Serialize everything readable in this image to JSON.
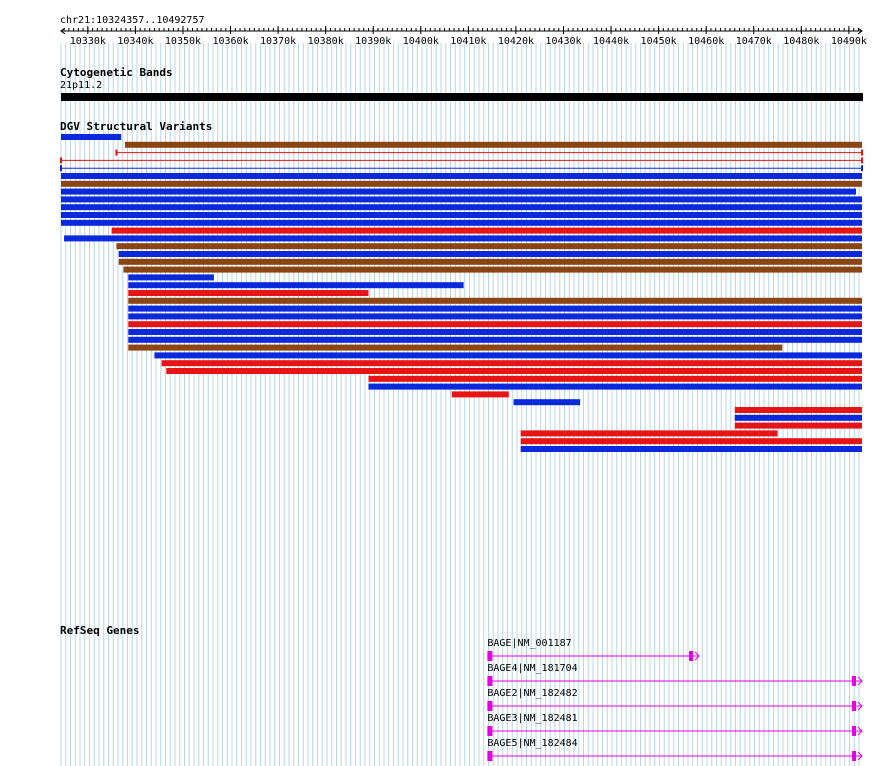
{
  "region": "chr21:10324357..10492757",
  "ruler": {
    "ticks": [
      {
        "pos": 10330000,
        "label": "10330k"
      },
      {
        "pos": 10340000,
        "label": "10340k"
      },
      {
        "pos": 10350000,
        "label": "10350k"
      },
      {
        "pos": 10360000,
        "label": "10360k"
      },
      {
        "pos": 10370000,
        "label": "10370k"
      },
      {
        "pos": 10380000,
        "label": "10380k"
      },
      {
        "pos": 10390000,
        "label": "10390k"
      },
      {
        "pos": 10400000,
        "label": "10400k"
      },
      {
        "pos": 10410000,
        "label": "10410k"
      },
      {
        "pos": 10420000,
        "label": "10420k"
      },
      {
        "pos": 10430000,
        "label": "10430k"
      },
      {
        "pos": 10440000,
        "label": "10440k"
      },
      {
        "pos": 10450000,
        "label": "10450k"
      },
      {
        "pos": 10460000,
        "label": "10460k"
      },
      {
        "pos": 10470000,
        "label": "10470k"
      },
      {
        "pos": 10480000,
        "label": "10480k"
      },
      {
        "pos": 10490000,
        "label": "10490k"
      }
    ]
  },
  "cytoband": {
    "title": "Cytogenetic Bands",
    "band": "21p11.2",
    "color": "#000000"
  },
  "dgv": {
    "title": "DGV Structural Variants",
    "colors": {
      "gain": "#0a28dc",
      "loss": "#e61414",
      "both": "#8b4513"
    },
    "features": [
      {
        "type": "gain",
        "start": 10324357,
        "end": 10337000
      },
      {
        "type": "both",
        "start": 10337800,
        "end": 10492757
      },
      {
        "type": "loss",
        "start": 10336000,
        "end": 10492757,
        "thin": true
      },
      {
        "type": "loss",
        "start": 10324357,
        "end": 10492757,
        "thin": true
      },
      {
        "type": "gain",
        "start": 10324357,
        "end": 10492757,
        "thin": true
      },
      {
        "type": "gain",
        "start": 10324357,
        "end": 10492757
      },
      {
        "type": "both",
        "start": 10324357,
        "end": 10492757
      },
      {
        "type": "gain",
        "start": 10324357,
        "end": 10491500
      },
      {
        "type": "gain",
        "start": 10324357,
        "end": 10492757
      },
      {
        "type": "gain",
        "start": 10324357,
        "end": 10492757
      },
      {
        "type": "gain",
        "start": 10324357,
        "end": 10492757
      },
      {
        "type": "gain",
        "start": 10324357,
        "end": 10492757
      },
      {
        "type": "loss",
        "start": 10335000,
        "end": 10492757
      },
      {
        "type": "gain",
        "start": 10325000,
        "end": 10492757
      },
      {
        "type": "both",
        "start": 10336000,
        "end": 10492757
      },
      {
        "type": "gain",
        "start": 10336500,
        "end": 10492757
      },
      {
        "type": "both",
        "start": 10336500,
        "end": 10492757
      },
      {
        "type": "both",
        "start": 10337500,
        "end": 10492757
      },
      {
        "type": "gain",
        "start": 10338500,
        "end": 10356500
      },
      {
        "type": "gain",
        "start": 10338500,
        "end": 10409000
      },
      {
        "type": "loss",
        "start": 10338500,
        "end": 10389000
      },
      {
        "type": "both",
        "start": 10338500,
        "end": 10492757
      },
      {
        "type": "gain",
        "start": 10338500,
        "end": 10492757
      },
      {
        "type": "gain",
        "start": 10338500,
        "end": 10492757
      },
      {
        "type": "loss",
        "start": 10338500,
        "end": 10492757
      },
      {
        "type": "gain",
        "start": 10338500,
        "end": 10492757
      },
      {
        "type": "gain",
        "start": 10338500,
        "end": 10492757
      },
      {
        "type": "both",
        "start": 10338500,
        "end": 10476000
      },
      {
        "type": "gain",
        "start": 10344000,
        "end": 10492757
      },
      {
        "type": "loss",
        "start": 10345500,
        "end": 10492757
      },
      {
        "type": "loss",
        "start": 10346500,
        "end": 10492757
      },
      {
        "type": "loss",
        "start": 10389000,
        "end": 10492757
      },
      {
        "type": "gain",
        "start": 10389000,
        "end": 10492757
      },
      {
        "type": "loss",
        "start": 10406500,
        "end": 10418500
      },
      {
        "type": "gain",
        "start": 10419500,
        "end": 10433500
      },
      {
        "type": "loss",
        "start": 10466000,
        "end": 10492757
      },
      {
        "type": "gain",
        "start": 10466000,
        "end": 10492757
      },
      {
        "type": "loss",
        "start": 10466000,
        "end": 10492757
      },
      {
        "type": "loss",
        "start": 10421000,
        "end": 10475000
      },
      {
        "type": "loss",
        "start": 10421000,
        "end": 10492757
      },
      {
        "type": "gain",
        "start": 10421000,
        "end": 10492757
      }
    ]
  },
  "refseq": {
    "title": "RefSeq Genes",
    "color": "#e600e6",
    "genes": [
      {
        "label": "BAGE|NM_001187",
        "start": 10414000,
        "end": 10458500
      },
      {
        "label": "BAGE4|NM_181704",
        "start": 10414000,
        "end": 10492757
      },
      {
        "label": "BAGE2|NM_182482",
        "start": 10414000,
        "end": 10492757
      },
      {
        "label": "BAGE3|NM_182481",
        "start": 10414000,
        "end": 10492757
      },
      {
        "label": "BAGE5|NM_182484",
        "start": 10414000,
        "end": 10492757
      }
    ]
  }
}
